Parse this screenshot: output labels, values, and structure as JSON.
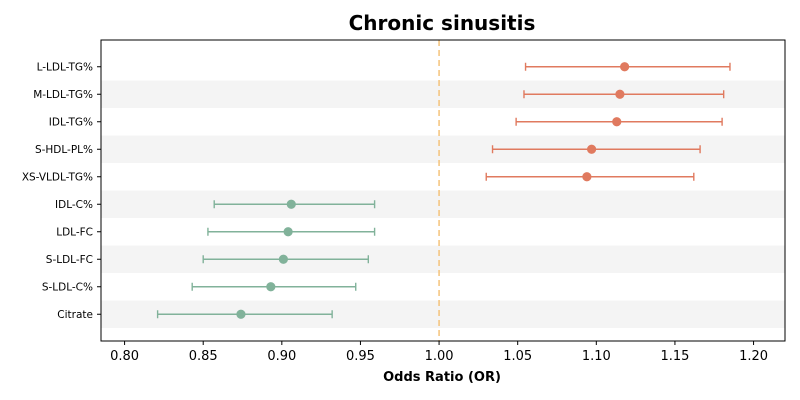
{
  "chart_data": {
    "type": "forest",
    "title": "Chronic sinusitis",
    "xlabel": "Odds Ratio (OR)",
    "xlim": [
      0.785,
      1.22
    ],
    "xticks": [
      0.8,
      0.85,
      0.9,
      0.95,
      1.0,
      1.05,
      1.1,
      1.15,
      1.2
    ],
    "xtick_labels": [
      "0.80",
      "0.85",
      "0.90",
      "0.95",
      "1.00",
      "1.05",
      "1.10",
      "1.15",
      "1.20"
    ],
    "reference_line": 1.0,
    "colors": {
      "positive": "#e07a5f",
      "negative": "#81b29a",
      "reference": "#f4c27a",
      "band": "#f4f4f4"
    },
    "rows": [
      {
        "label": "L-LDL-TG%",
        "or": 1.118,
        "lower": 1.055,
        "upper": 1.185
      },
      {
        "label": "M-LDL-TG%",
        "or": 1.115,
        "lower": 1.054,
        "upper": 1.181
      },
      {
        "label": "IDL-TG%",
        "or": 1.113,
        "lower": 1.049,
        "upper": 1.18
      },
      {
        "label": "S-HDL-PL%",
        "or": 1.097,
        "lower": 1.034,
        "upper": 1.166
      },
      {
        "label": "XS-VLDL-TG%",
        "or": 1.094,
        "lower": 1.03,
        "upper": 1.162
      },
      {
        "label": "IDL-C%",
        "or": 0.906,
        "lower": 0.857,
        "upper": 0.959
      },
      {
        "label": "LDL-FC",
        "or": 0.904,
        "lower": 0.853,
        "upper": 0.959
      },
      {
        "label": "S-LDL-FC",
        "or": 0.901,
        "lower": 0.85,
        "upper": 0.955
      },
      {
        "label": "S-LDL-C%",
        "or": 0.893,
        "lower": 0.843,
        "upper": 0.947
      },
      {
        "label": "Citrate",
        "or": 0.874,
        "lower": 0.821,
        "upper": 0.932
      }
    ]
  }
}
